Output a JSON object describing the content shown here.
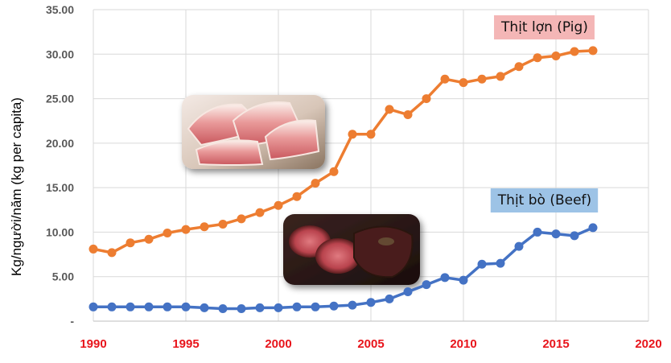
{
  "chart_data": {
    "type": "line",
    "ylabel": "Kg/người/năm (kg per capita)",
    "xlabel": "",
    "xlim": [
      1990,
      2020
    ],
    "ylim": [
      0,
      35
    ],
    "grid": true,
    "x_ticks": [
      "1990",
      "1995",
      "2000",
      "2005",
      "2010",
      "2015",
      "2020"
    ],
    "x_tick_values": [
      1990,
      1995,
      2000,
      2005,
      2010,
      2015,
      2020
    ],
    "y_ticks": [
      "-",
      "5.00",
      "10.00",
      "15.00",
      "20.00",
      "25.00",
      "30.00",
      "35.00"
    ],
    "y_tick_values": [
      0,
      5,
      10,
      15,
      20,
      25,
      30,
      35
    ],
    "x": [
      1990,
      1991,
      1992,
      1993,
      1994,
      1995,
      1996,
      1997,
      1998,
      1999,
      2000,
      2001,
      2002,
      2003,
      2004,
      2005,
      2006,
      2007,
      2008,
      2009,
      2010,
      2011,
      2012,
      2013,
      2014,
      2015,
      2016,
      2017
    ],
    "series": [
      {
        "name": "Thịt lợn (Pig)",
        "color": "#ed7d31",
        "label_bg": "#f4b6b6",
        "values": [
          8.1,
          7.7,
          8.8,
          9.2,
          9.9,
          10.3,
          10.6,
          10.9,
          11.5,
          12.2,
          13.0,
          14.0,
          15.5,
          16.8,
          21.0,
          21.0,
          23.8,
          23.2,
          25.0,
          27.2,
          26.8,
          27.2,
          27.5,
          28.6,
          29.6,
          29.8,
          30.3,
          30.4
        ]
      },
      {
        "name": "Thịt bò (Beef)",
        "color": "#4472c4",
        "label_bg": "#9dc3e6",
        "values": [
          1.6,
          1.6,
          1.6,
          1.6,
          1.6,
          1.6,
          1.5,
          1.4,
          1.4,
          1.5,
          1.5,
          1.6,
          1.6,
          1.7,
          1.8,
          2.1,
          2.5,
          3.3,
          4.1,
          4.9,
          4.6,
          6.4,
          6.5,
          8.4,
          10.0,
          9.8,
          9.6,
          10.5
        ]
      }
    ],
    "annotations": [
      "Thịt lợn (Pig)",
      "Thịt bò (Beef)"
    ]
  },
  "images": [
    {
      "name": "pork-meat-photo",
      "depicts": "raw pork belly slices"
    },
    {
      "name": "beef-meat-photo",
      "depicts": "roasted beef tenderloin"
    }
  ]
}
